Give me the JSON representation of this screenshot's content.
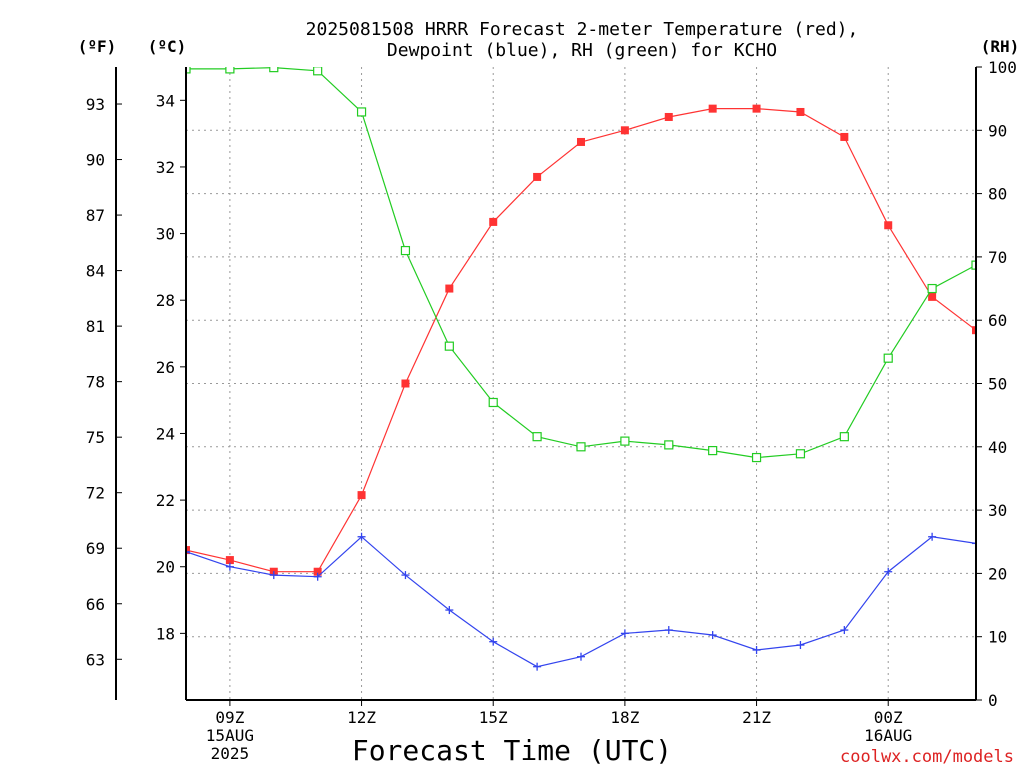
{
  "chart_data": {
    "type": "line",
    "title_line1": "2025081508 HRRR Forecast 2-meter Temperature (red),",
    "title_line2": "Dewpoint (blue), RH (green) for KCHO",
    "xlabel": "Forecast Time (UTC)",
    "credit": "coolwx.com/models",
    "unit_f": "(ºF)",
    "unit_c": "(ºC)",
    "unit_rh": "(RH)",
    "x_forecast_hours": [
      8,
      9,
      10,
      11,
      12,
      13,
      14,
      15,
      16,
      17,
      18,
      19,
      20,
      21,
      22,
      23,
      24,
      25,
      26
    ],
    "x_range": [
      8,
      26
    ],
    "x_ticks": [
      {
        "x": 9,
        "line1": "09Z",
        "line2": "15AUG",
        "line3": "2025"
      },
      {
        "x": 12,
        "line1": "12Z",
        "line2": "",
        "line3": ""
      },
      {
        "x": 15,
        "line1": "15Z",
        "line2": "",
        "line3": ""
      },
      {
        "x": 18,
        "line1": "18Z",
        "line2": "",
        "line3": ""
      },
      {
        "x": 21,
        "line1": "21Z",
        "line2": "",
        "line3": ""
      },
      {
        "x": 24,
        "line1": "00Z",
        "line2": "16AUG",
        "line3": ""
      }
    ],
    "y_celsius_range": [
      16,
      35
    ],
    "y_celsius_ticks": [
      "18",
      "20",
      "22",
      "24",
      "26",
      "28",
      "30",
      "32",
      "34"
    ],
    "y_fahrenheit_ticks": [
      "63",
      "66",
      "69",
      "72",
      "75",
      "78",
      "81",
      "84",
      "87",
      "90",
      "93"
    ],
    "y_rh_range": [
      0,
      100
    ],
    "y_rh_ticks": [
      "0",
      "10",
      "20",
      "30",
      "40",
      "50",
      "60",
      "70",
      "80",
      "90",
      "100"
    ],
    "grid": true,
    "series": [
      {
        "name": "Temperature",
        "axis": "celsius",
        "color": "#ff3333",
        "marker": "filled-square",
        "values": [
          20.5,
          20.2,
          19.85,
          19.85,
          22.15,
          25.5,
          28.35,
          30.35,
          31.7,
          32.75,
          33.1,
          33.5,
          33.75,
          33.75,
          33.65,
          32.9,
          30.25,
          28.1,
          27.1
        ]
      },
      {
        "name": "Dewpoint",
        "axis": "celsius",
        "color": "#3344ee",
        "marker": "plus",
        "values": [
          20.45,
          20.0,
          19.75,
          19.7,
          20.9,
          19.75,
          18.7,
          17.75,
          17.0,
          17.3,
          18.0,
          18.1,
          17.95,
          17.5,
          17.65,
          18.1,
          19.85,
          20.9,
          20.7
        ]
      },
      {
        "name": "RH",
        "axis": "rh",
        "color": "#22cc22",
        "marker": "open-square",
        "values": [
          99.7,
          99.7,
          99.9,
          99.4,
          92.9,
          71.0,
          55.9,
          47.0,
          41.6,
          40.0,
          40.9,
          40.3,
          39.4,
          38.3,
          38.9,
          41.6,
          54.0,
          65.0,
          68.7
        ]
      }
    ]
  }
}
